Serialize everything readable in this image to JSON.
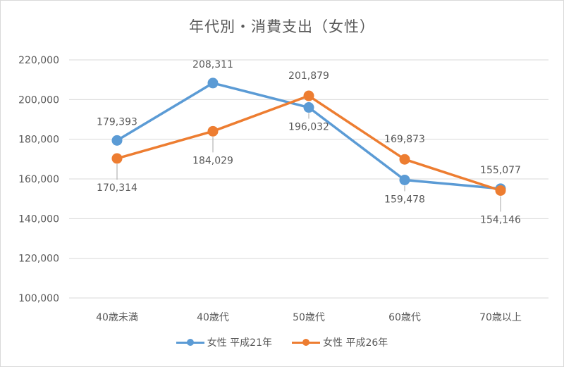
{
  "chart_data": {
    "type": "line",
    "title": "年代別・消費支出（女性）",
    "xlabel": "",
    "ylabel": "",
    "categories": [
      "40歳未満",
      "40歳代",
      "50歳代",
      "60歳代",
      "70歳以上"
    ],
    "series": [
      {
        "name": "女性 平成21年",
        "color": "#5b9bd5",
        "values": [
          179393,
          208311,
          196032,
          159478,
          155077
        ],
        "labels": [
          "179,393",
          "208,311",
          "196,032",
          "159,478",
          "155,077"
        ]
      },
      {
        "name": "女性 平成26年",
        "color": "#ed7d31",
        "values": [
          170314,
          184029,
          201879,
          169873,
          154146
        ],
        "labels": [
          "170,314",
          "184,029",
          "201,879",
          "169,873",
          "154,146"
        ]
      }
    ],
    "ylim": [
      100000,
      220000
    ],
    "yticks": [
      "220,000",
      "200,000",
      "180,000",
      "160,000",
      "140,000",
      "120,000",
      "100,000"
    ],
    "grid": true,
    "legend_position": "bottom"
  },
  "legend": {
    "items": [
      {
        "label": "女性 平成21年",
        "color": "#5b9bd5"
      },
      {
        "label": "女性 平成26年",
        "color": "#ed7d31"
      }
    ]
  }
}
